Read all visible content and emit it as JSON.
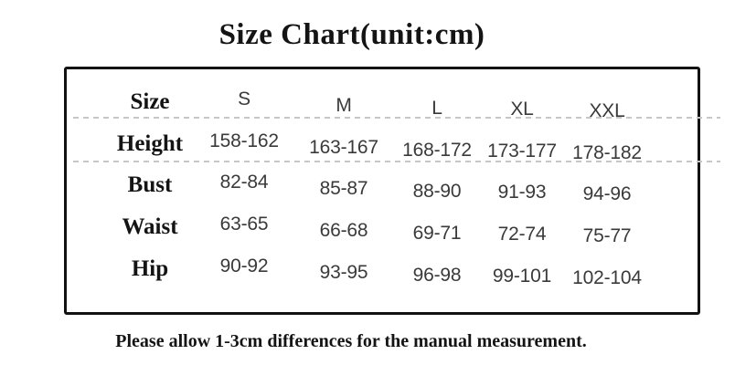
{
  "title": "Size Chart(unit:cm)",
  "footnote": "Please allow 1-3cm differences for the manual measurement.",
  "chart_data": {
    "type": "table",
    "title": "Size Chart(unit:cm)",
    "unit": "cm",
    "header": {
      "label": "Size",
      "sizes": [
        "S",
        "M",
        "L",
        "XL",
        "XXL"
      ]
    },
    "rows": [
      {
        "label": "Height",
        "values": [
          "158-162",
          "163-167",
          "168-172",
          "173-177",
          "178-182"
        ]
      },
      {
        "label": "Bust",
        "values": [
          "82-84",
          "85-87",
          "88-90",
          "91-93",
          "94-96"
        ]
      },
      {
        "label": "Waist",
        "values": [
          "63-65",
          "66-68",
          "69-71",
          "72-74",
          "75-77"
        ]
      },
      {
        "label": "Hip",
        "values": [
          "90-92",
          "93-95",
          "96-98",
          "99-101",
          "102-104"
        ]
      }
    ],
    "footnote": "Please allow 1-3cm differences for the manual measurement."
  },
  "colors": {
    "background": "#ffffff",
    "border": "#121212",
    "label": "#141414",
    "value": "#3a3a3a",
    "dash": "#c6c6c6"
  }
}
